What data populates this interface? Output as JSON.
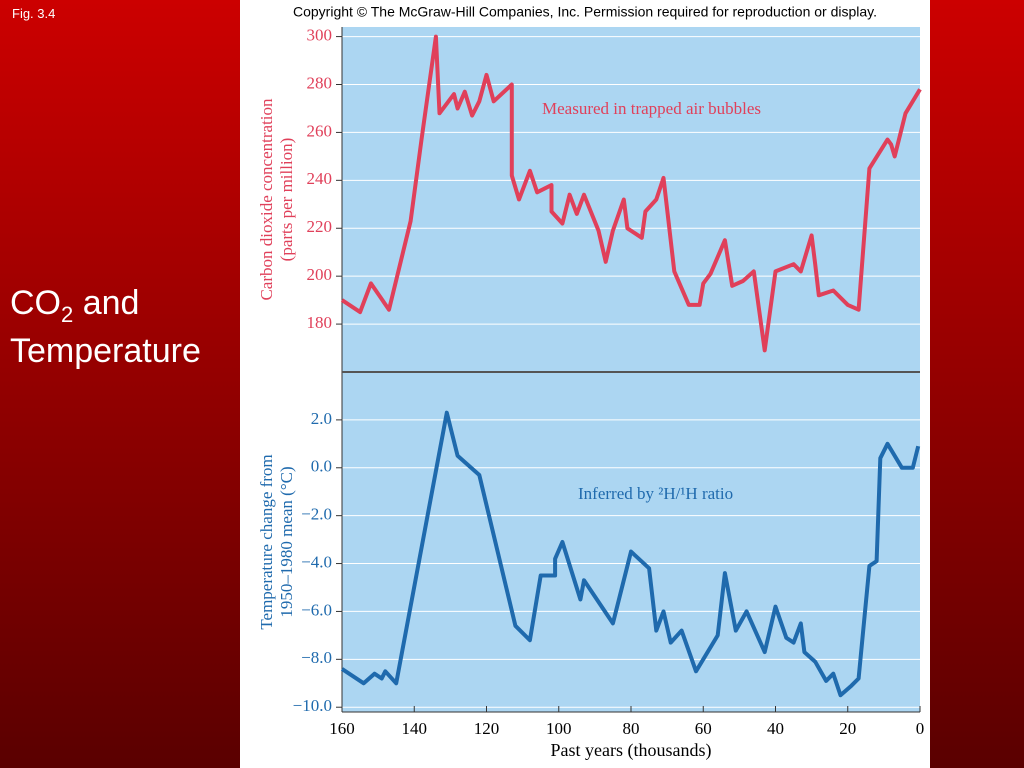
{
  "slide": {
    "figure_label": "Fig. 3.4",
    "title_main": "CO",
    "title_sub": "2",
    "title_rest": " and",
    "title_line2": "Temperature",
    "copyright": "Copyright © The McGraw-Hill Companies, Inc. Permission required for reproduction or display."
  },
  "chart_data": [
    {
      "type": "line",
      "color": "#e0405a",
      "grid": true,
      "ylabel": [
        "Carbon dioxide concentration",
        "(parts per million)"
      ],
      "annotation": "Measured in trapped air bubbles",
      "xlim": [
        160,
        0
      ],
      "ylim": [
        160,
        304
      ],
      "yticks": [
        180,
        200,
        220,
        240,
        260,
        280,
        300
      ],
      "x": [
        160,
        155,
        152,
        147,
        141,
        138,
        134,
        133,
        129,
        128,
        126,
        124,
        122,
        120,
        118,
        113,
        113,
        111,
        108,
        106,
        102,
        102,
        99,
        97,
        95,
        93,
        89,
        87,
        85,
        82,
        81,
        77,
        76,
        73,
        71,
        68,
        64,
        61,
        60,
        58,
        54,
        52,
        49,
        46,
        43,
        40,
        35,
        33,
        30,
        29,
        28,
        24,
        20,
        17,
        14,
        9,
        8,
        7,
        4,
        0
      ],
      "values": [
        190,
        185,
        197,
        186,
        223,
        257,
        300,
        268,
        276,
        270,
        277,
        267,
        273,
        284,
        273,
        280,
        242,
        232,
        244,
        235,
        238,
        227,
        222,
        234,
        226,
        234,
        219,
        206,
        219,
        232,
        220,
        216,
        227,
        232,
        241,
        202,
        188,
        188,
        197,
        201,
        215,
        196,
        198,
        202,
        169,
        202,
        205,
        202,
        217,
        205,
        192,
        194,
        188,
        186,
        245,
        257,
        255,
        250,
        268,
        278
      ]
    },
    {
      "type": "line",
      "color": "#1f6aad",
      "grid": true,
      "ylabel": [
        "Temperature change from",
        "1950–1980 mean (°C)"
      ],
      "annotation": "Inferred by ²H/¹H ratio",
      "xlabel": "Past years (thousands)",
      "xlim": [
        160,
        0
      ],
      "ylim": [
        -10.2,
        4.0
      ],
      "xticks": [
        160,
        140,
        120,
        100,
        80,
        60,
        40,
        20,
        0
      ],
      "yticks": [
        {
          "value": 2,
          "label": "2.0"
        },
        {
          "value": 0,
          "label": "0.0"
        },
        {
          "value": -2,
          "label": "−2.0"
        },
        {
          "value": -4,
          "label": "−4.0"
        },
        {
          "value": -6,
          "label": "−6.0"
        },
        {
          "value": -8,
          "label": "−8.0"
        },
        {
          "value": -10,
          "label": "−10.0"
        }
      ],
      "x": [
        160,
        154,
        151,
        149,
        148,
        145,
        131,
        128,
        122,
        112,
        108,
        105,
        101,
        101,
        99,
        94,
        93,
        85,
        80,
        75,
        73,
        71,
        69,
        66,
        62,
        56,
        54,
        51,
        48,
        43,
        40,
        37,
        35,
        33,
        32,
        29,
        26,
        24,
        22,
        19,
        17,
        14,
        12,
        11,
        9,
        5,
        2,
        0.5
      ],
      "values": [
        -8.4,
        -9.0,
        -8.6,
        -8.8,
        -8.5,
        -9.0,
        2.3,
        0.5,
        -0.3,
        -6.6,
        -7.2,
        -4.5,
        -4.5,
        -3.8,
        -3.1,
        -5.5,
        -4.7,
        -6.5,
        -3.5,
        -4.2,
        -6.8,
        -6.0,
        -7.3,
        -6.8,
        -8.5,
        -7.0,
        -4.4,
        -6.8,
        -6.0,
        -7.7,
        -5.8,
        -7.1,
        -7.3,
        -6.5,
        -7.7,
        -8.1,
        -8.9,
        -8.6,
        -9.5,
        -9.1,
        -8.8,
        -4.1,
        -3.9,
        0.4,
        1.0,
        0,
        0,
        0.9
      ]
    }
  ]
}
